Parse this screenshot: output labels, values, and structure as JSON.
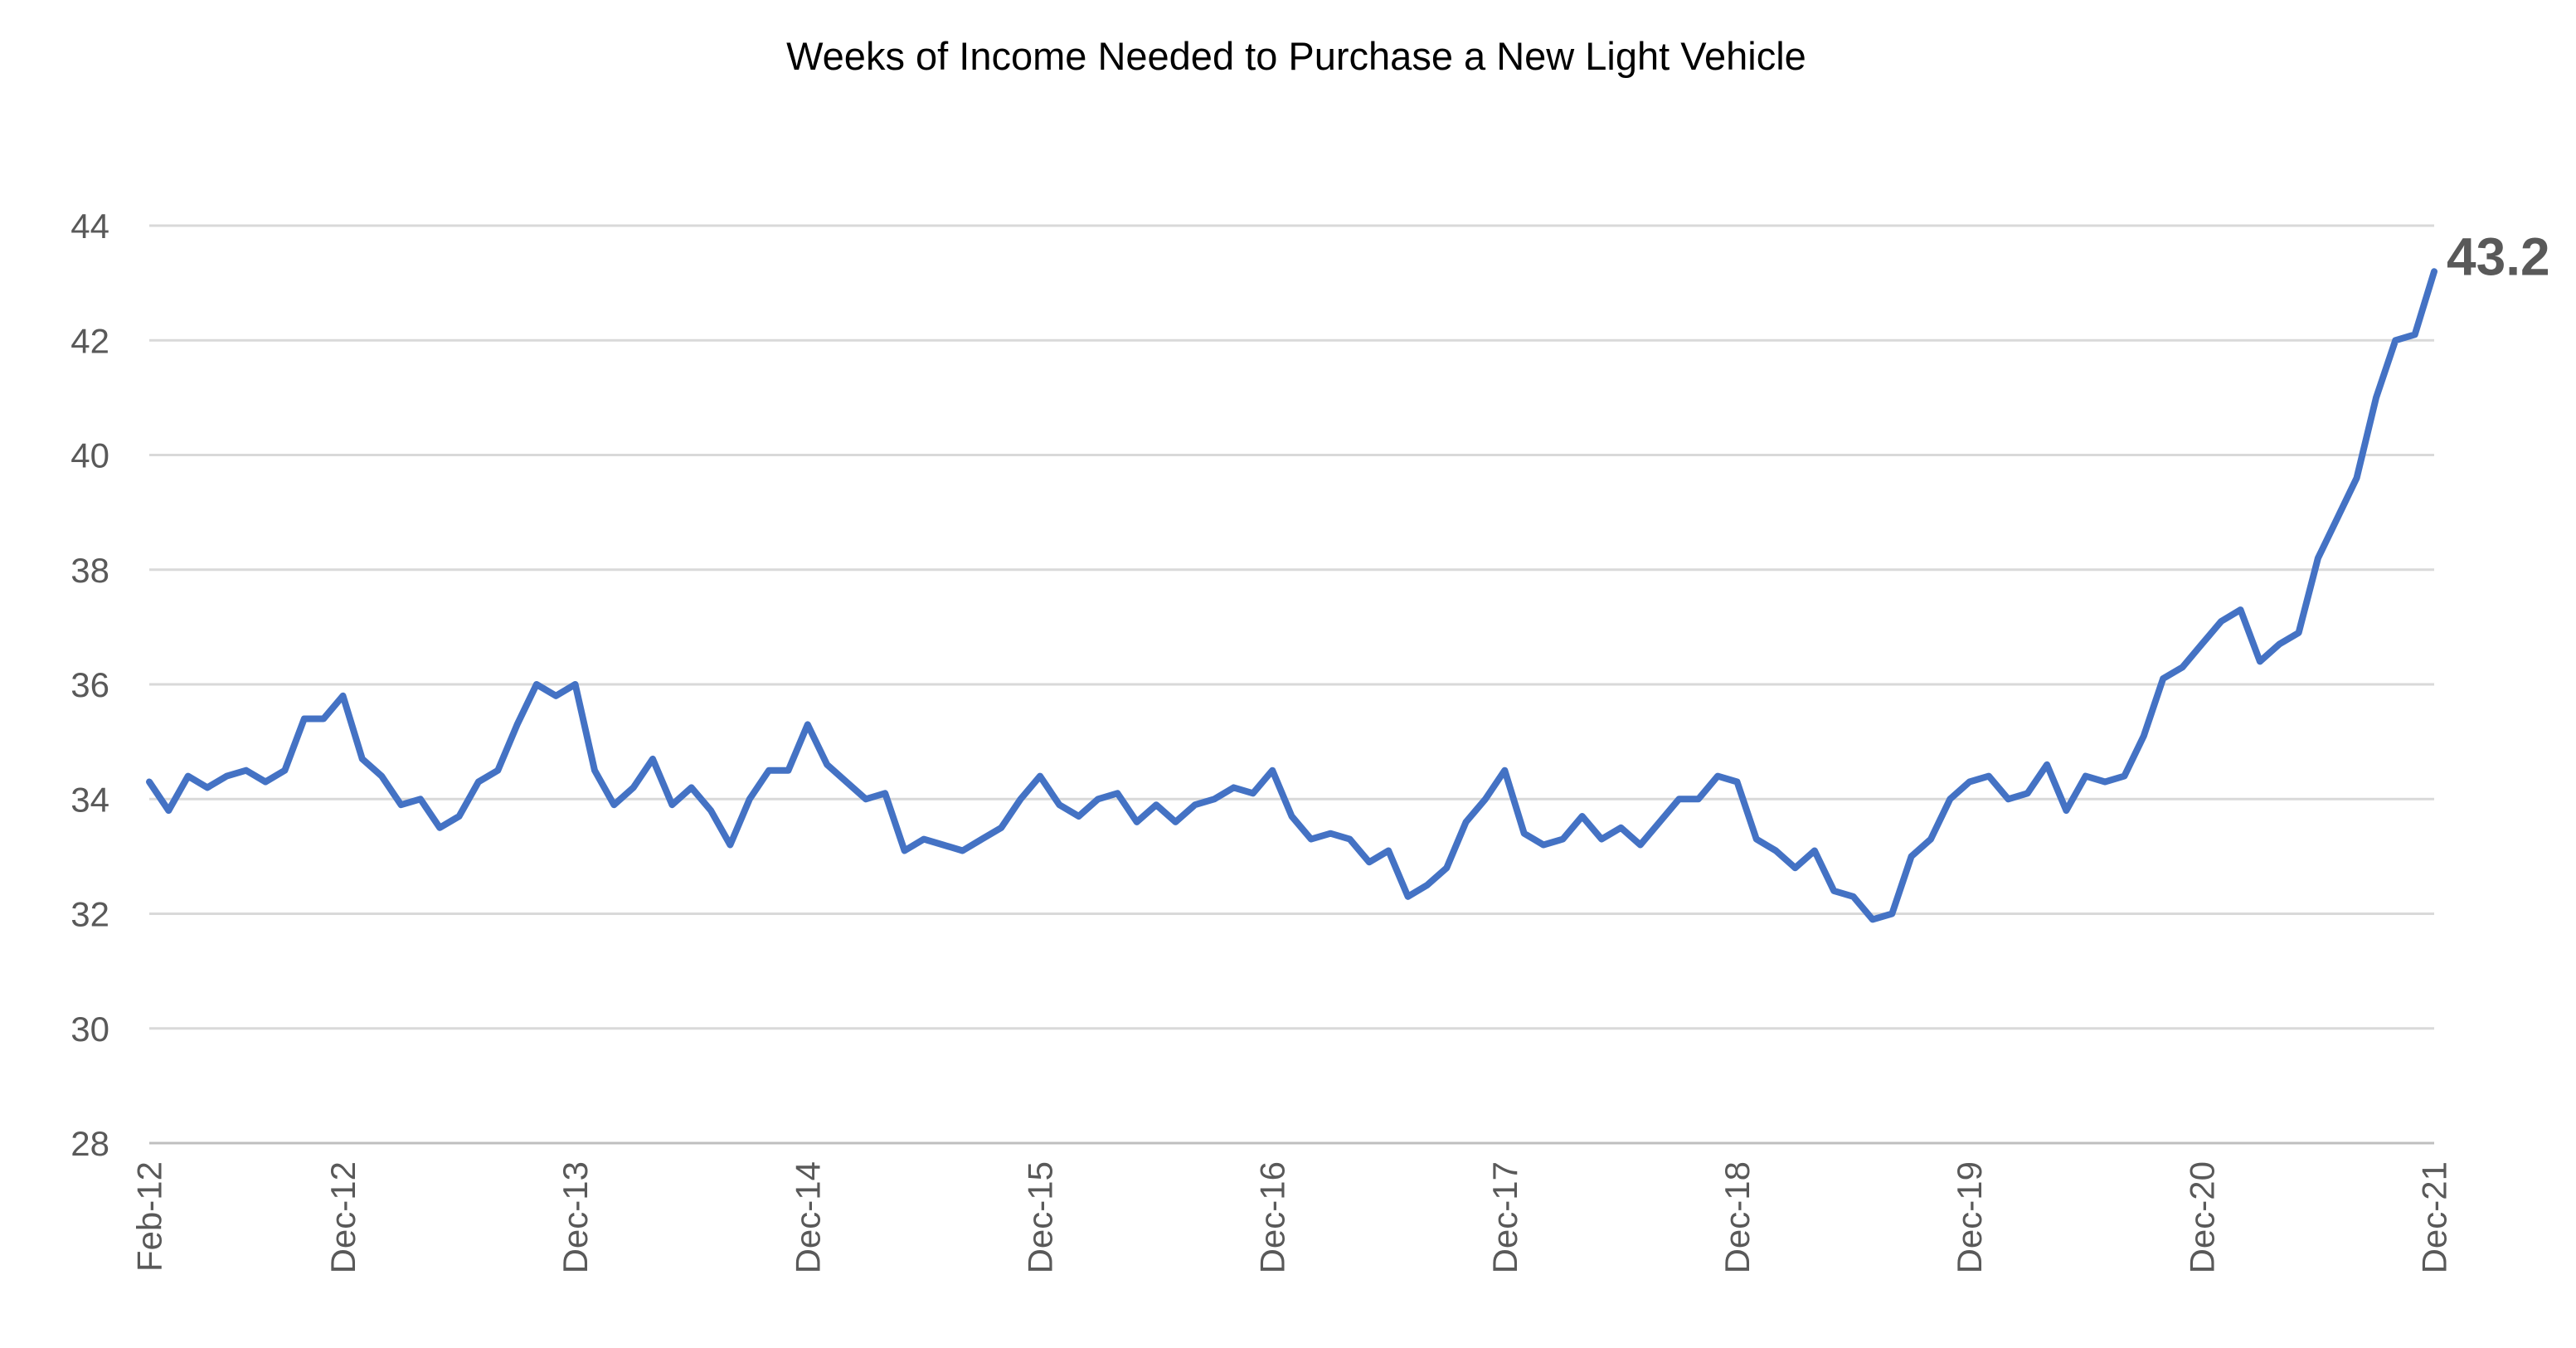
{
  "chart_data": {
    "type": "line",
    "title": "Weeks of Income Needed to Purchase a New Light Vehicle",
    "xlabel": "",
    "ylabel": "",
    "ylim": [
      28,
      44
    ],
    "yticks": [
      "28",
      "30",
      "32",
      "34",
      "36",
      "38",
      "40",
      "42",
      "44"
    ],
    "xtick_labels": [
      "Feb-12",
      "Dec-12",
      "Dec-13",
      "Dec-14",
      "Dec-15",
      "Dec-16",
      "Dec-17",
      "Dec-18",
      "Dec-19",
      "Dec-20",
      "Dec-21"
    ],
    "x": [
      "Feb-12",
      "Mar-12",
      "Apr-12",
      "May-12",
      "Jun-12",
      "Jul-12",
      "Aug-12",
      "Sep-12",
      "Oct-12",
      "Nov-12",
      "Dec-12",
      "Jan-13",
      "Feb-13",
      "Mar-13",
      "Apr-13",
      "May-13",
      "Jun-13",
      "Jul-13",
      "Aug-13",
      "Sep-13",
      "Oct-13",
      "Nov-13",
      "Dec-13",
      "Jan-14",
      "Feb-14",
      "Mar-14",
      "Apr-14",
      "May-14",
      "Jun-14",
      "Jul-14",
      "Aug-14",
      "Sep-14",
      "Oct-14",
      "Nov-14",
      "Dec-14",
      "Jan-15",
      "Feb-15",
      "Mar-15",
      "Apr-15",
      "May-15",
      "Jun-15",
      "Jul-15",
      "Aug-15",
      "Sep-15",
      "Oct-15",
      "Nov-15",
      "Dec-15",
      "Jan-16",
      "Feb-16",
      "Mar-16",
      "Apr-16",
      "May-16",
      "Jun-16",
      "Jul-16",
      "Aug-16",
      "Sep-16",
      "Oct-16",
      "Nov-16",
      "Dec-16",
      "Jan-17",
      "Feb-17",
      "Mar-17",
      "Apr-17",
      "May-17",
      "Jun-17",
      "Jul-17",
      "Aug-17",
      "Sep-17",
      "Oct-17",
      "Nov-17",
      "Dec-17",
      "Jan-18",
      "Feb-18",
      "Mar-18",
      "Apr-18",
      "May-18",
      "Jun-18",
      "Jul-18",
      "Aug-18",
      "Sep-18",
      "Oct-18",
      "Nov-18",
      "Dec-18",
      "Jan-19",
      "Feb-19",
      "Mar-19",
      "Apr-19",
      "May-19",
      "Jun-19",
      "Jul-19",
      "Aug-19",
      "Sep-19",
      "Oct-19",
      "Nov-19",
      "Dec-19",
      "Jan-20",
      "Feb-20",
      "Mar-20",
      "Apr-20",
      "May-20",
      "Jun-20",
      "Jul-20",
      "Aug-20",
      "Sep-20",
      "Oct-20",
      "Nov-20",
      "Dec-20",
      "Jan-21",
      "Feb-21",
      "Mar-21",
      "Apr-21",
      "May-21",
      "Jun-21",
      "Jul-21",
      "Aug-21",
      "Sep-21",
      "Oct-21",
      "Nov-21",
      "Dec-21"
    ],
    "series": [
      {
        "name": "",
        "color": "#4472c4",
        "values": [
          34.3,
          33.8,
          34.4,
          34.2,
          34.4,
          34.5,
          34.3,
          34.5,
          35.4,
          35.4,
          35.8,
          34.7,
          34.4,
          33.9,
          34.0,
          33.5,
          33.7,
          34.3,
          34.5,
          35.3,
          36.0,
          35.8,
          36.0,
          34.5,
          33.9,
          34.2,
          34.7,
          33.9,
          34.2,
          33.8,
          33.2,
          34.0,
          34.5,
          34.5,
          35.3,
          34.6,
          34.3,
          34.0,
          34.1,
          33.1,
          33.3,
          33.2,
          33.1,
          33.3,
          33.5,
          34.0,
          34.4,
          33.9,
          33.7,
          34.0,
          34.1,
          33.6,
          33.9,
          33.6,
          33.9,
          34.0,
          34.2,
          34.1,
          34.5,
          33.7,
          33.3,
          33.4,
          33.3,
          32.9,
          33.1,
          32.3,
          32.5,
          32.8,
          33.6,
          34.0,
          34.5,
          33.4,
          33.2,
          33.3,
          33.7,
          33.3,
          33.5,
          33.2,
          33.6,
          34.0,
          34.0,
          34.4,
          34.3,
          33.3,
          33.1,
          32.8,
          33.1,
          32.4,
          32.3,
          31.9,
          32.0,
          33.0,
          33.3,
          34.0,
          34.3,
          34.4,
          34.0,
          34.1,
          34.6,
          33.8,
          34.4,
          34.3,
          34.4,
          35.1,
          36.1,
          36.3,
          36.7,
          37.1,
          37.3,
          36.4,
          36.7,
          36.9,
          38.2,
          38.9,
          39.6,
          41.0,
          42.0,
          42.1,
          43.2
        ]
      }
    ],
    "end_label": "43.2",
    "grid": true,
    "legend": "none"
  }
}
